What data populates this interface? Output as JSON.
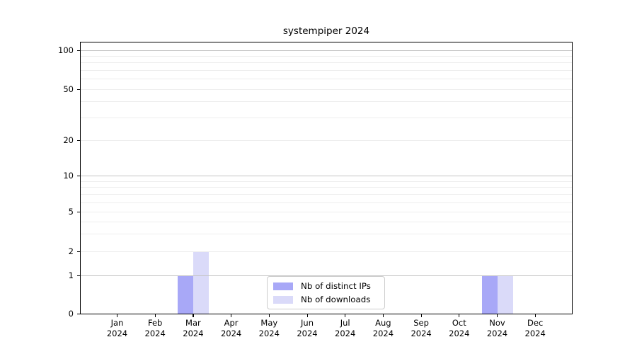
{
  "chart_data": {
    "type": "bar",
    "title": "systempiper 2024",
    "categories": [
      "Jan 2024",
      "Feb 2024",
      "Mar 2024",
      "Apr 2024",
      "May 2024",
      "Jun 2024",
      "Jul 2024",
      "Aug 2024",
      "Sep 2024",
      "Oct 2024",
      "Nov 2024",
      "Dec 2024"
    ],
    "series": [
      {
        "name": "Nb of distinct IPs",
        "color": "#a8a8f7",
        "values": [
          0,
          0,
          1,
          0,
          0,
          0,
          0,
          0,
          0,
          0,
          1,
          0
        ]
      },
      {
        "name": "Nb of downloads",
        "color": "#dadaf9",
        "values": [
          0,
          0,
          2,
          0,
          0,
          0,
          0,
          0,
          0,
          0,
          1,
          0
        ]
      }
    ],
    "xlabel": "",
    "ylabel": "",
    "y_axis": {
      "scale": "log-like above 1, zero baseline",
      "tick_values": [
        0,
        1,
        2,
        5,
        10,
        20,
        50,
        100
      ],
      "range_top": 115
    },
    "grid": {
      "visible": true,
      "major_values": [
        1,
        10,
        100
      ],
      "minor_values": [
        2,
        3,
        4,
        5,
        6,
        7,
        8,
        9,
        20,
        30,
        40,
        50,
        60,
        70,
        80,
        90
      ],
      "major_color": "#c3c3c3",
      "minor_color": "#ededed"
    },
    "legend": {
      "position": "inside-bottom-center",
      "entries": [
        "Nb of distinct IPs",
        "Nb of downloads"
      ]
    },
    "colors": {
      "background": "#ffffff",
      "axis": "#000000",
      "text": "#000000"
    }
  }
}
